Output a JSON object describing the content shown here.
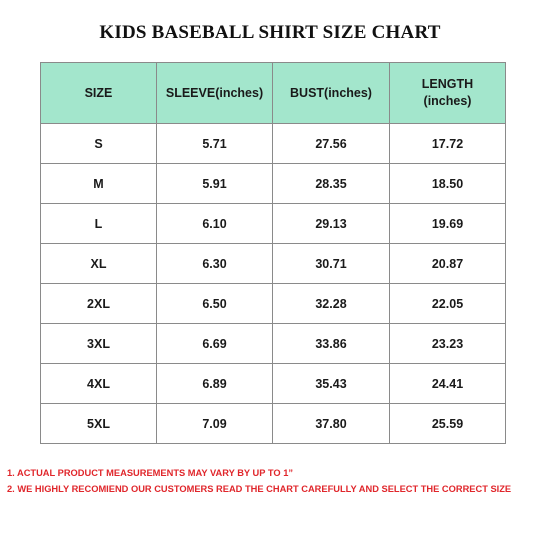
{
  "title": "KIDS BASEBALL SHIRT SIZE CHART",
  "table": {
    "headers": [
      "SIZE",
      "SLEEVE(inches)",
      "BUST(inches)",
      "LENGTH (inches)"
    ],
    "header_length_line1": "LENGTH",
    "header_length_line2": "(inches)",
    "rows": [
      [
        "S",
        "5.71",
        "27.56",
        "17.72"
      ],
      [
        "M",
        "5.91",
        "28.35",
        "18.50"
      ],
      [
        "L",
        "6.10",
        "29.13",
        "19.69"
      ],
      [
        "XL",
        "6.30",
        "30.71",
        "20.87"
      ],
      [
        "2XL",
        "6.50",
        "32.28",
        "22.05"
      ],
      [
        "3XL",
        "6.69",
        "33.86",
        "23.23"
      ],
      [
        "4XL",
        "6.89",
        "35.43",
        "24.41"
      ],
      [
        "5XL",
        "7.09",
        "37.80",
        "25.59"
      ]
    ]
  },
  "notes": [
    "1. ACTUAL PRODUCT MEASUREMENTS MAY VARY BY UP TO 1”",
    "2. WE HIGHLY RECOMIEND OUR CUSTOMERS READ THE CHART CAREFULLY AND SELECT THE CORRECT SIZE"
  ],
  "colors": {
    "header_background": "#a3e6cc",
    "note_text": "#e0262b",
    "border": "#8a8a8a"
  }
}
